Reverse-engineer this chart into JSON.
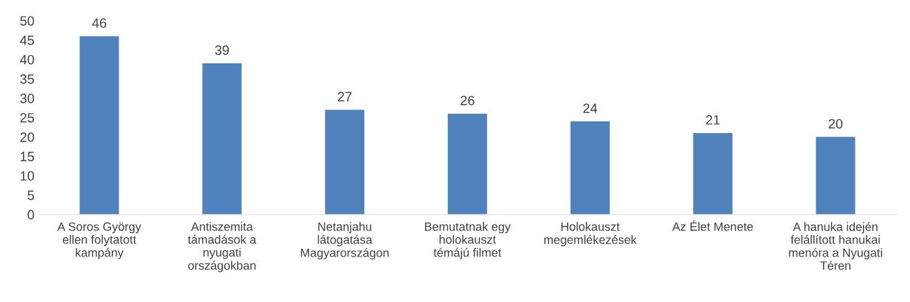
{
  "chart_data": {
    "type": "bar",
    "categories": [
      "A Soros György\nellen folytatott\nkampány",
      "Antiszemita\ntámadások a\nnyugati\nországokban",
      "Netanjahu\nlátogatása\nMagyarországon",
      "Bemutatnak egy\nholokauszt\ntémájú filmet",
      "Holokauszt\nmegemlékezések",
      "Az Élet Menete",
      "A hanuka idején\nfelállított hanukai\nmenóra a Nyugati\nTéren"
    ],
    "values": [
      46,
      39,
      27,
      26,
      24,
      21,
      20
    ],
    "color": "#4f81bd",
    "ylim": [
      0,
      50
    ],
    "yticks": [
      0,
      5,
      10,
      15,
      20,
      25,
      30,
      35,
      40,
      45,
      50
    ],
    "data_labels": true,
    "grid": false,
    "legend": false
  }
}
